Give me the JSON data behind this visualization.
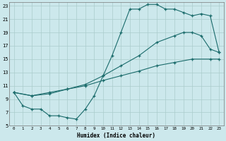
{
  "xlabel": "Humidex (Indice chaleur)",
  "background_color": "#cce8ec",
  "grid_color": "#aacccc",
  "line_color": "#1a6b6b",
  "xlim": [
    -0.5,
    23.5
  ],
  "ylim": [
    5,
    23.5
  ],
  "xticks": [
    0,
    1,
    2,
    3,
    4,
    5,
    6,
    7,
    8,
    9,
    10,
    11,
    12,
    13,
    14,
    15,
    16,
    17,
    18,
    19,
    20,
    21,
    22,
    23
  ],
  "yticks": [
    5,
    7,
    9,
    11,
    13,
    15,
    17,
    19,
    21,
    23
  ],
  "curve1_x": [
    0,
    1,
    2,
    3,
    4,
    5,
    6,
    7,
    8,
    9,
    10,
    11,
    12,
    13,
    14,
    15,
    16,
    17,
    18,
    19,
    20,
    21,
    22,
    23
  ],
  "curve1_y": [
    10,
    8,
    7.5,
    7.5,
    6.5,
    6.5,
    6.2,
    6.0,
    7.5,
    9.5,
    12.5,
    15.5,
    19.0,
    22.5,
    22.5,
    23.2,
    23.2,
    22.5,
    22.5,
    22.0,
    21.5,
    21.8,
    21.5,
    16.0
  ],
  "curve2_x": [
    0,
    2,
    4,
    6,
    8,
    10,
    12,
    14,
    16,
    18,
    19,
    20,
    21,
    22,
    23
  ],
  "curve2_y": [
    10,
    9.5,
    9.8,
    10.5,
    11.2,
    12.5,
    14.0,
    15.5,
    17.5,
    18.5,
    19.0,
    19.0,
    18.5,
    16.5,
    16.0
  ],
  "curve3_x": [
    0,
    2,
    4,
    6,
    8,
    10,
    12,
    14,
    16,
    18,
    20,
    22,
    23
  ],
  "curve3_y": [
    10,
    9.5,
    10.0,
    10.5,
    11.0,
    11.8,
    12.5,
    13.2,
    14.0,
    14.5,
    15.0,
    15.0,
    15.0
  ]
}
